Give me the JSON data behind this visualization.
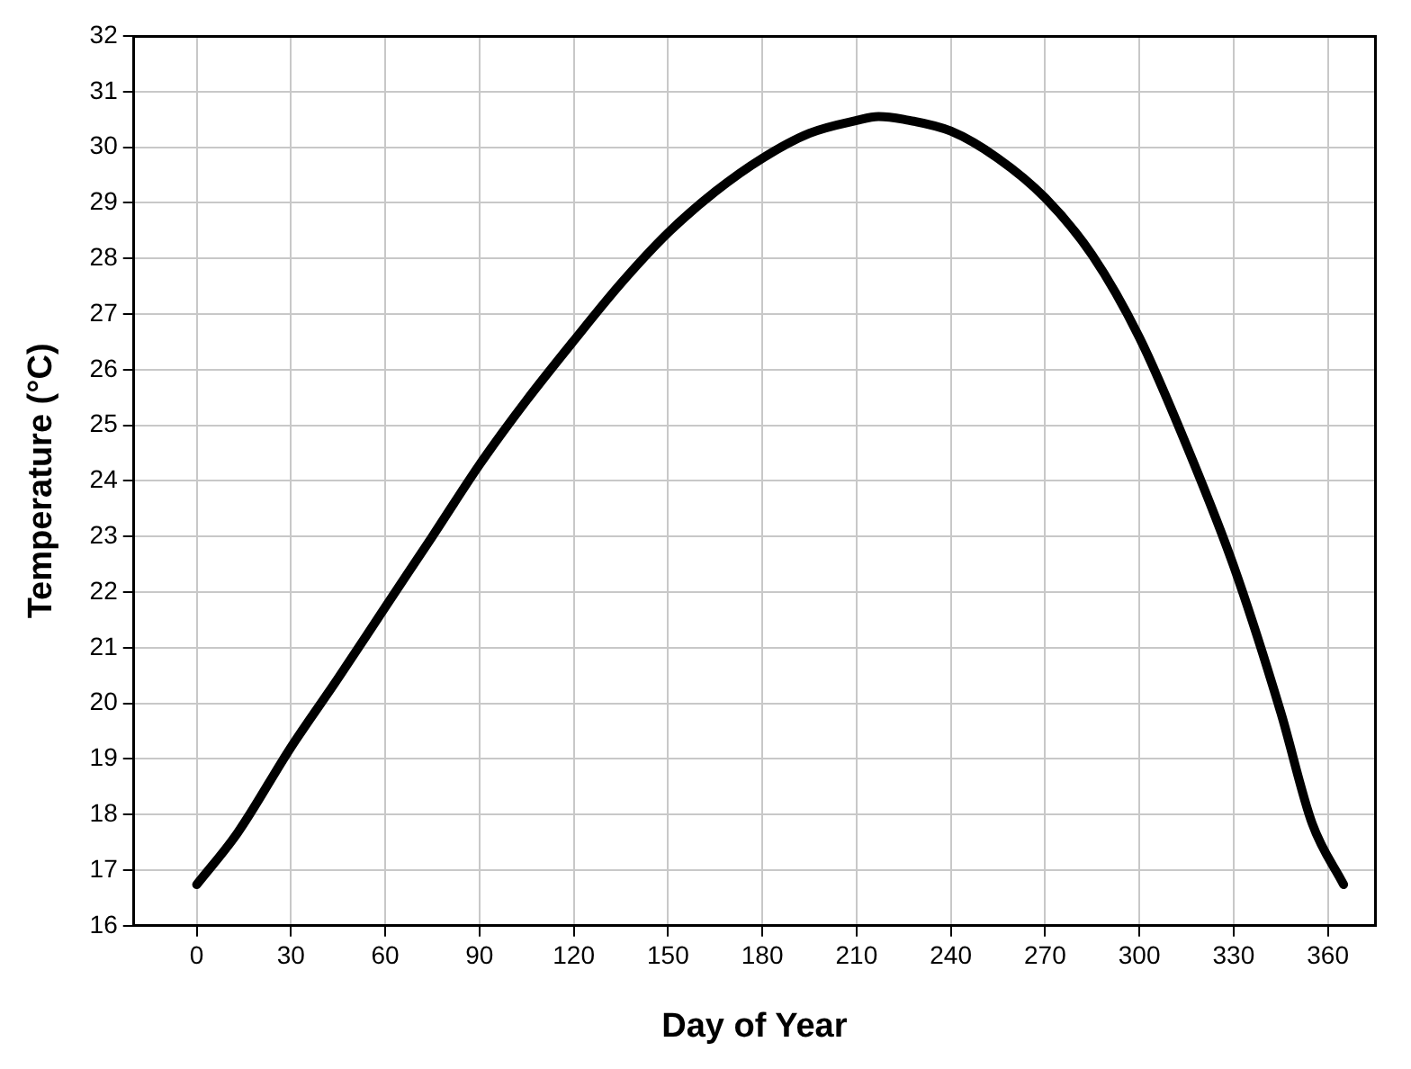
{
  "chart_data": {
    "type": "line",
    "xlabel": "Day of Year",
    "ylabel": "Temperature (°C)",
    "x": [
      0,
      13,
      30,
      45,
      60,
      75,
      90,
      105,
      120,
      135,
      150,
      165,
      180,
      195,
      210,
      217,
      225,
      240,
      255,
      270,
      285,
      300,
      315,
      330,
      345,
      355,
      365
    ],
    "series": [
      {
        "color": "#000000",
        "values": [
          16.74,
          17.67,
          19.21,
          20.45,
          21.73,
          23.0,
          24.29,
          25.45,
          26.52,
          27.55,
          28.46,
          29.2,
          29.8,
          30.25,
          30.48,
          30.55,
          30.5,
          30.29,
          29.8,
          29.09,
          28.06,
          26.58,
          24.64,
          22.47,
          19.84,
          17.84,
          16.74
        ]
      }
    ],
    "xlim": [
      -20,
      375
    ],
    "xticks": [
      0,
      30,
      60,
      90,
      120,
      150,
      180,
      210,
      240,
      270,
      300,
      330,
      360
    ],
    "ylim": [
      16,
      32
    ],
    "yticks": [
      16,
      17,
      18,
      19,
      20,
      21,
      22,
      23,
      24,
      25,
      26,
      27,
      28,
      29,
      30,
      31,
      32
    ],
    "grid": true,
    "legend": false,
    "marker": "none",
    "line_style": "solid"
  }
}
